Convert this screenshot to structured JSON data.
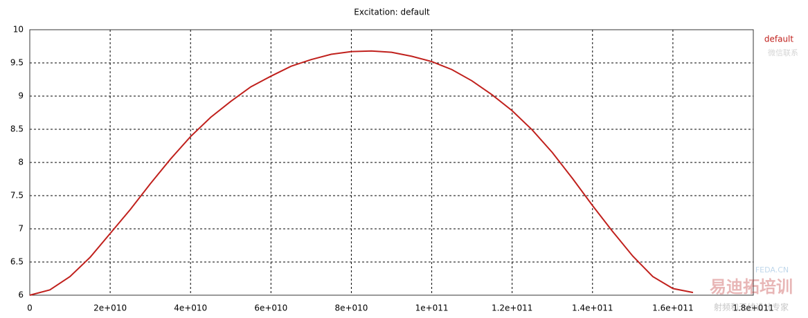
{
  "chart_data": {
    "type": "line",
    "title": "Excitation: default",
    "x": [
      0,
      5000000000.0,
      10000000000.0,
      15000000000.0,
      20000000000.0,
      25000000000.0,
      30000000000.0,
      35000000000.0,
      40000000000.0,
      45000000000.0,
      50000000000.0,
      55000000000.0,
      60000000000.0,
      65000000000.0,
      70000000000.0,
      75000000000.0,
      80000000000.0,
      85000000000.0,
      90000000000.0,
      95000000000.0,
      100000000000.0,
      105000000000.0,
      110000000000.0,
      115000000000.0,
      120000000000.0,
      125000000000.0,
      130000000000.0,
      135000000000.0,
      140000000000.0,
      145000000000.0,
      150000000000.0,
      155000000000.0,
      160000000000.0,
      165000000000.0
    ],
    "series": [
      {
        "name": "default",
        "color": "#c0201c",
        "values": [
          6.0,
          6.08,
          6.28,
          6.57,
          6.93,
          7.29,
          7.68,
          8.05,
          8.39,
          8.68,
          8.92,
          9.14,
          9.3,
          9.45,
          9.55,
          9.63,
          9.67,
          9.68,
          9.66,
          9.6,
          9.52,
          9.4,
          9.23,
          9.02,
          8.78,
          8.49,
          8.15,
          7.76,
          7.35,
          6.96,
          6.59,
          6.28,
          6.1,
          6.04
        ]
      }
    ],
    "xlim": [
      0,
      180000000000.0
    ],
    "ylim": [
      6,
      10
    ],
    "xticks": [
      0,
      {
        "value": 20000000000.0,
        "label": "2e+010"
      },
      {
        "value": 40000000000.0,
        "label": "4e+010"
      },
      {
        "value": 60000000000.0,
        "label": "6e+010"
      },
      {
        "value": 80000000000.0,
        "label": "8e+010"
      },
      {
        "value": 100000000000.0,
        "label": "1e+011"
      },
      {
        "value": 120000000000.0,
        "label": "1.2e+011"
      },
      {
        "value": 140000000000.0,
        "label": "1.4e+011"
      },
      {
        "value": 160000000000.0,
        "label": "1.6e+011"
      },
      {
        "value": 180000000000.0,
        "label": "1.8e+011"
      }
    ],
    "yticks": [
      6,
      6.5,
      7,
      7.5,
      8,
      8.5,
      9,
      9.5,
      10
    ],
    "grid": true,
    "legend": "top-right"
  },
  "watermark": [
    "微信联系",
    "FEDA.CN",
    "易迪拓培训",
    "射频和天线设计专家"
  ]
}
